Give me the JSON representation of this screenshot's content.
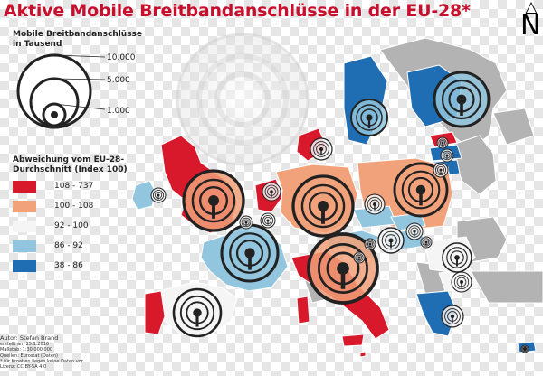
{
  "title": "Aktive Mobile Breitbandanschlüsse in der EU-28*",
  "north_label": "N",
  "size_legend": {
    "heading_line1": "Mobile Breitbandanschlüsse",
    "heading_line2": "in Tausend",
    "values": [
      "10.000",
      "5.000",
      "1.000"
    ]
  },
  "color_legend": {
    "heading_line1": "Abweichung vom EU-28-",
    "heading_line2": "Durchschnitt (Index 100)",
    "classes": [
      {
        "label": "108 - 737",
        "color": "#d7192b"
      },
      {
        "label": "100 - 108",
        "color": "#f2a27a"
      },
      {
        "label": "92 - 100",
        "color": "#f5f5f5"
      },
      {
        "label": "86 - 92",
        "color": "#92c5de"
      },
      {
        "label": "38 - 86",
        "color": "#1f6eb4"
      }
    ]
  },
  "credits": {
    "author": "Autor: Stefan Brand",
    "lines": [
      "erstellt am 25.1.2016",
      "Maßstab: 1:30.000.000",
      "Quellen: Eurostat (Daten)",
      "* für Kroatien liegen keine Daten vor",
      "Lizenz: CC BY-SA 4.0"
    ]
  },
  "map": {
    "sea_color": "#ffffff",
    "outside_color": "#b3b3b3",
    "countries": [
      {
        "name": "Ireland",
        "class": "86 - 92"
      },
      {
        "name": "United Kingdom",
        "class": "108 - 737"
      },
      {
        "name": "France",
        "class": "86 - 92"
      },
      {
        "name": "Spain",
        "class": "92 - 100"
      },
      {
        "name": "Portugal",
        "class": "108 - 737"
      },
      {
        "name": "Belgium",
        "class": "92 - 100"
      },
      {
        "name": "Netherlands",
        "class": "108 - 737"
      },
      {
        "name": "Luxembourg",
        "class": "92 - 100"
      },
      {
        "name": "Germany",
        "class": "100 - 108"
      },
      {
        "name": "Denmark",
        "class": "108 - 737"
      },
      {
        "name": "Sweden",
        "class": "38 - 86"
      },
      {
        "name": "Finland",
        "class": "38 - 86"
      },
      {
        "name": "Estonia",
        "class": "108 - 737"
      },
      {
        "name": "Latvia",
        "class": "38 - 86"
      },
      {
        "name": "Lithuania",
        "class": "38 - 86"
      },
      {
        "name": "Poland",
        "class": "100 - 108"
      },
      {
        "name": "Czechia",
        "class": "86 - 92"
      },
      {
        "name": "Austria",
        "class": "86 - 92"
      },
      {
        "name": "Slovakia",
        "class": "86 - 92"
      },
      {
        "name": "Hungary",
        "class": "86 - 92"
      },
      {
        "name": "Slovenia",
        "class": "86 - 92"
      },
      {
        "name": "Italy",
        "class": "108 - 737"
      },
      {
        "name": "Romania",
        "class": "92 - 100"
      },
      {
        "name": "Bulgaria",
        "class": "92 - 100"
      },
      {
        "name": "Greece",
        "class": "38 - 86"
      },
      {
        "name": "Cyprus",
        "class": "38 - 86"
      },
      {
        "name": "Malta",
        "class": "108 - 737"
      }
    ]
  }
}
